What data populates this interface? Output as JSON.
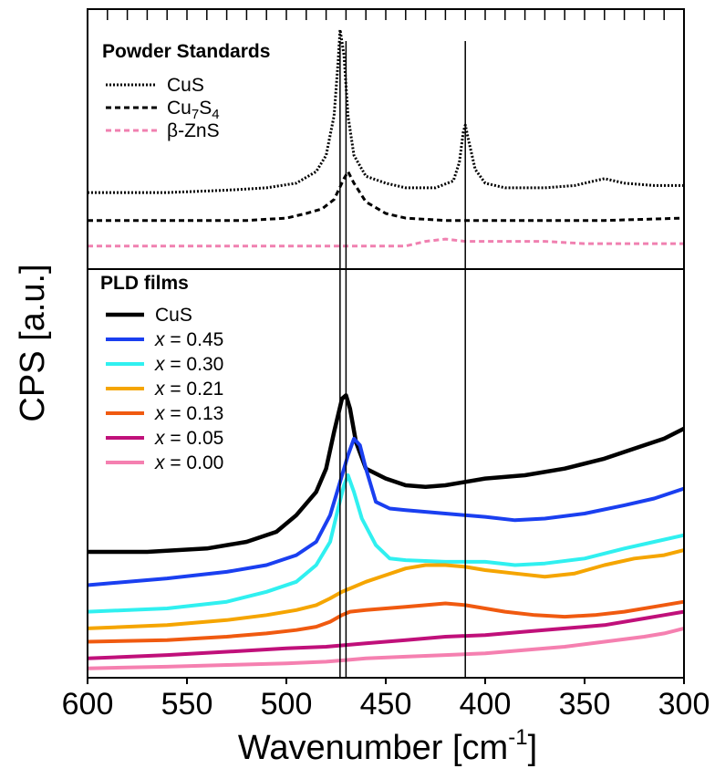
{
  "chart_data": {
    "type": "line",
    "xlabel": "Wavenumber [cm",
    "xlabel_sup": "-1",
    "xlabel_end": "]",
    "ylabel": "CPS [a.u.]",
    "xlim": [
      600,
      300
    ],
    "x_reversed": true,
    "xticks": [
      "600",
      "550",
      "500",
      "450",
      "400",
      "350",
      "300"
    ],
    "reference_lines": [
      473,
      470,
      410
    ],
    "panels": [
      {
        "title": "Powder Standards",
        "position": "top",
        "ylim": [
          0,
          100
        ],
        "series": [
          {
            "name": "CuS",
            "color": "#000000",
            "dash": "dotted",
            "points": [
              [
                600,
                29
              ],
              [
                560,
                29
              ],
              [
                530,
                30
              ],
              [
                510,
                31
              ],
              [
                495,
                33
              ],
              [
                485,
                38
              ],
              [
                480,
                45
              ],
              [
                476,
                62
              ],
              [
                474,
                85
              ],
              [
                473,
                99
              ],
              [
                471,
                88
              ],
              [
                469,
                62
              ],
              [
                466,
                45
              ],
              [
                460,
                36
              ],
              [
                450,
                33
              ],
              [
                440,
                31
              ],
              [
                425,
                31
              ],
              [
                416,
                34
              ],
              [
                413,
                42
              ],
              [
                411,
                55
              ],
              [
                410,
                58
              ],
              [
                408,
                50
              ],
              [
                405,
                39
              ],
              [
                400,
                33
              ],
              [
                390,
                31
              ],
              [
                370,
                31
              ],
              [
                355,
                32
              ],
              [
                340,
                35
              ],
              [
                330,
                33
              ],
              [
                315,
                32
              ],
              [
                300,
                32
              ]
            ]
          },
          {
            "name": "Cu7S4",
            "name_base": "Cu",
            "name_sub1": "7",
            "name_mid": "S",
            "name_sub2": "4",
            "color": "#000000",
            "dash": "dashed",
            "points": [
              [
                600,
                17
              ],
              [
                560,
                17
              ],
              [
                520,
                17
              ],
              [
                500,
                18
              ],
              [
                490,
                20
              ],
              [
                482,
                22
              ],
              [
                476,
                26
              ],
              [
                471,
                35
              ],
              [
                469,
                38
              ],
              [
                466,
                33
              ],
              [
                460,
                25
              ],
              [
                450,
                20
              ],
              [
                440,
                18
              ],
              [
                420,
                17
              ],
              [
                380,
                17
              ],
              [
                340,
                17
              ],
              [
                300,
                18
              ]
            ]
          },
          {
            "name": "β-ZnS",
            "color": "#f080b0",
            "dash": "dashed",
            "points": [
              [
                600,
                6
              ],
              [
                500,
                6
              ],
              [
                460,
                6
              ],
              [
                440,
                6
              ],
              [
                430,
                8
              ],
              [
                420,
                9
              ],
              [
                410,
                8
              ],
              [
                400,
                8
              ],
              [
                390,
                8
              ],
              [
                370,
                8
              ],
              [
                350,
                7
              ],
              [
                330,
                7
              ],
              [
                300,
                7
              ]
            ]
          }
        ]
      },
      {
        "title": "PLD films",
        "position": "bottom",
        "ylim": [
          0,
          100
        ],
        "series": [
          {
            "name": "CuS",
            "label_prefix": "",
            "label_value": "CuS",
            "color": "#000000",
            "width": 4.5,
            "points": [
              [
                600,
                37
              ],
              [
                570,
                37
              ],
              [
                540,
                38
              ],
              [
                520,
                40
              ],
              [
                505,
                43
              ],
              [
                495,
                48
              ],
              [
                485,
                55
              ],
              [
                480,
                62
              ],
              [
                476,
                73
              ],
              [
                472,
                83
              ],
              [
                470,
                84
              ],
              [
                468,
                80
              ],
              [
                465,
                70
              ],
              [
                460,
                62
              ],
              [
                450,
                59
              ],
              [
                440,
                57
              ],
              [
                430,
                56.5
              ],
              [
                420,
                57
              ],
              [
                410,
                58
              ],
              [
                400,
                59
              ],
              [
                380,
                60
              ],
              [
                360,
                62
              ],
              [
                340,
                65
              ],
              [
                320,
                69
              ],
              [
                310,
                71
              ],
              [
                300,
                74
              ]
            ]
          },
          {
            "name": "x = 0.45",
            "label_prefix": "x",
            "label_value": " = 0.45",
            "color": "#1a3ff0",
            "width": 4,
            "points": [
              [
                600,
                27
              ],
              [
                560,
                29
              ],
              [
                530,
                31
              ],
              [
                510,
                33
              ],
              [
                495,
                36
              ],
              [
                485,
                40
              ],
              [
                478,
                48
              ],
              [
                473,
                58
              ],
              [
                469,
                66
              ],
              [
                466,
                71
              ],
              [
                463,
                69
              ],
              [
                460,
                62
              ],
              [
                455,
                52
              ],
              [
                448,
                50
              ],
              [
                440,
                49.5
              ],
              [
                420,
                48.5
              ],
              [
                400,
                47.5
              ],
              [
                385,
                46.5
              ],
              [
                370,
                47
              ],
              [
                350,
                48.5
              ],
              [
                330,
                51
              ],
              [
                315,
                53
              ],
              [
                300,
                56
              ]
            ]
          },
          {
            "name": "x = 0.30",
            "label_prefix": "x",
            "label_value": " = 0.30",
            "color": "#30f0f0",
            "width": 4,
            "points": [
              [
                600,
                19
              ],
              [
                560,
                20
              ],
              [
                530,
                22
              ],
              [
                510,
                25
              ],
              [
                495,
                28
              ],
              [
                485,
                33
              ],
              [
                478,
                40
              ],
              [
                474,
                50
              ],
              [
                471,
                57
              ],
              [
                469,
                60
              ],
              [
                466,
                55
              ],
              [
                462,
                47
              ],
              [
                455,
                39
              ],
              [
                448,
                35
              ],
              [
                440,
                34.5
              ],
              [
                420,
                34
              ],
              [
                400,
                34
              ],
              [
                385,
                33
              ],
              [
                370,
                33.5
              ],
              [
                350,
                35
              ],
              [
                330,
                38
              ],
              [
                315,
                40
              ],
              [
                300,
                42
              ]
            ]
          },
          {
            "name": "x = 0.21",
            "label_prefix": "x",
            "label_value": " = 0.21",
            "color": "#f5a500",
            "width": 4,
            "points": [
              [
                600,
                14
              ],
              [
                560,
                15
              ],
              [
                530,
                16.5
              ],
              [
                510,
                18
              ],
              [
                495,
                19.5
              ],
              [
                485,
                21
              ],
              [
                478,
                23
              ],
              [
                472,
                25
              ],
              [
                468,
                26
              ],
              [
                460,
                28
              ],
              [
                450,
                30
              ],
              [
                440,
                32
              ],
              [
                430,
                33
              ],
              [
                420,
                33
              ],
              [
                410,
                32.5
              ],
              [
                400,
                31.5
              ],
              [
                385,
                30.5
              ],
              [
                370,
                29.5
              ],
              [
                355,
                30.5
              ],
              [
                340,
                33
              ],
              [
                325,
                35
              ],
              [
                310,
                36
              ],
              [
                300,
                37.5
              ]
            ]
          },
          {
            "name": "x = 0.13",
            "label_prefix": "x",
            "label_value": " = 0.13",
            "color": "#f05a10",
            "width": 4,
            "points": [
              [
                600,
                10
              ],
              [
                560,
                10.5
              ],
              [
                530,
                11.5
              ],
              [
                510,
                12.5
              ],
              [
                495,
                13.5
              ],
              [
                485,
                14.5
              ],
              [
                478,
                16
              ],
              [
                472,
                18
              ],
              [
                468,
                19
              ],
              [
                460,
                19.5
              ],
              [
                450,
                20
              ],
              [
                440,
                20.5
              ],
              [
                430,
                21
              ],
              [
                420,
                21.5
              ],
              [
                410,
                21
              ],
              [
                400,
                20
              ],
              [
                390,
                19
              ],
              [
                375,
                18
              ],
              [
                360,
                17.5
              ],
              [
                345,
                18
              ],
              [
                330,
                19
              ],
              [
                315,
                20.5
              ],
              [
                300,
                22
              ]
            ]
          },
          {
            "name": "x = 0.05",
            "label_prefix": "x",
            "label_value": " = 0.05",
            "color": "#c0107a",
            "width": 4,
            "points": [
              [
                600,
                5
              ],
              [
                560,
                6
              ],
              [
                530,
                7
              ],
              [
                500,
                8
              ],
              [
                480,
                8.5
              ],
              [
                470,
                9
              ],
              [
                460,
                9.5
              ],
              [
                450,
                10
              ],
              [
                440,
                10.5
              ],
              [
                420,
                11.5
              ],
              [
                400,
                12
              ],
              [
                380,
                13
              ],
              [
                360,
                14
              ],
              [
                340,
                15
              ],
              [
                320,
                17
              ],
              [
                310,
                18
              ],
              [
                300,
                19
              ]
            ]
          },
          {
            "name": "x = 0.00",
            "label_prefix": "x",
            "label_value": " = 0.00",
            "color": "#f580b0",
            "width": 4,
            "points": [
              [
                600,
                2
              ],
              [
                560,
                2.5
              ],
              [
                530,
                3
              ],
              [
                500,
                3.5
              ],
              [
                480,
                4
              ],
              [
                470,
                4.5
              ],
              [
                460,
                5
              ],
              [
                440,
                5.5
              ],
              [
                420,
                6
              ],
              [
                400,
                6.5
              ],
              [
                380,
                7.5
              ],
              [
                360,
                8.5
              ],
              [
                340,
                10
              ],
              [
                320,
                11.5
              ],
              [
                310,
                12.5
              ],
              [
                300,
                14
              ]
            ]
          }
        ]
      }
    ]
  }
}
